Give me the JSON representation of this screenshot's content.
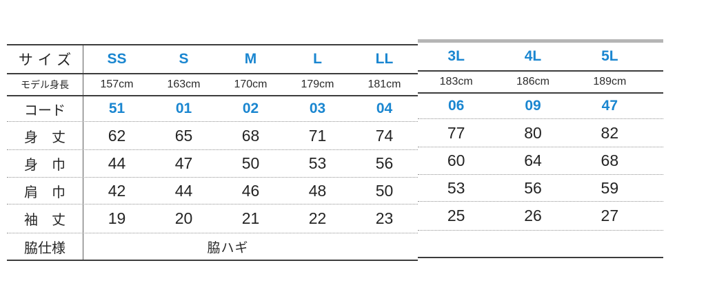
{
  "colors": {
    "accent_blue": "#1a86d0",
    "line_dark": "#3c3c3c",
    "line_light_grey": "#b5b5b5",
    "text_dark": "#242424"
  },
  "chart_data": {
    "type": "table",
    "title": "",
    "columns": [
      "サイズ",
      "SS",
      "S",
      "M",
      "L",
      "LL",
      "3L",
      "4L",
      "5L"
    ],
    "rows": [
      [
        "モデル身長",
        "157cm",
        "163cm",
        "170cm",
        "179cm",
        "181cm",
        "183cm",
        "186cm",
        "189cm"
      ],
      [
        "コード",
        "51",
        "01",
        "02",
        "03",
        "04",
        "06",
        "09",
        "47"
      ],
      [
        "身　丈",
        "62",
        "65",
        "68",
        "71",
        "74",
        "77",
        "80",
        "82"
      ],
      [
        "身　巾",
        "44",
        "47",
        "50",
        "53",
        "56",
        "60",
        "64",
        "68"
      ],
      [
        "肩　巾",
        "42",
        "44",
        "46",
        "48",
        "50",
        "53",
        "56",
        "59"
      ],
      [
        "袖　丈",
        "19",
        "20",
        "21",
        "22",
        "23",
        "25",
        "26",
        "27"
      ],
      [
        "脇仕様",
        "脇ハギ"
      ]
    ],
    "layout_hints": {
      "sections": [
        "SS-LL dark borders",
        "3L-5L light grey top band, offset up"
      ],
      "row_separators": "dotted below コード through 袖丈, solid elsewhere",
      "side_spec_note": "脇ハギ spans SS–LL columns; 3L–5L bottom row empty"
    }
  }
}
